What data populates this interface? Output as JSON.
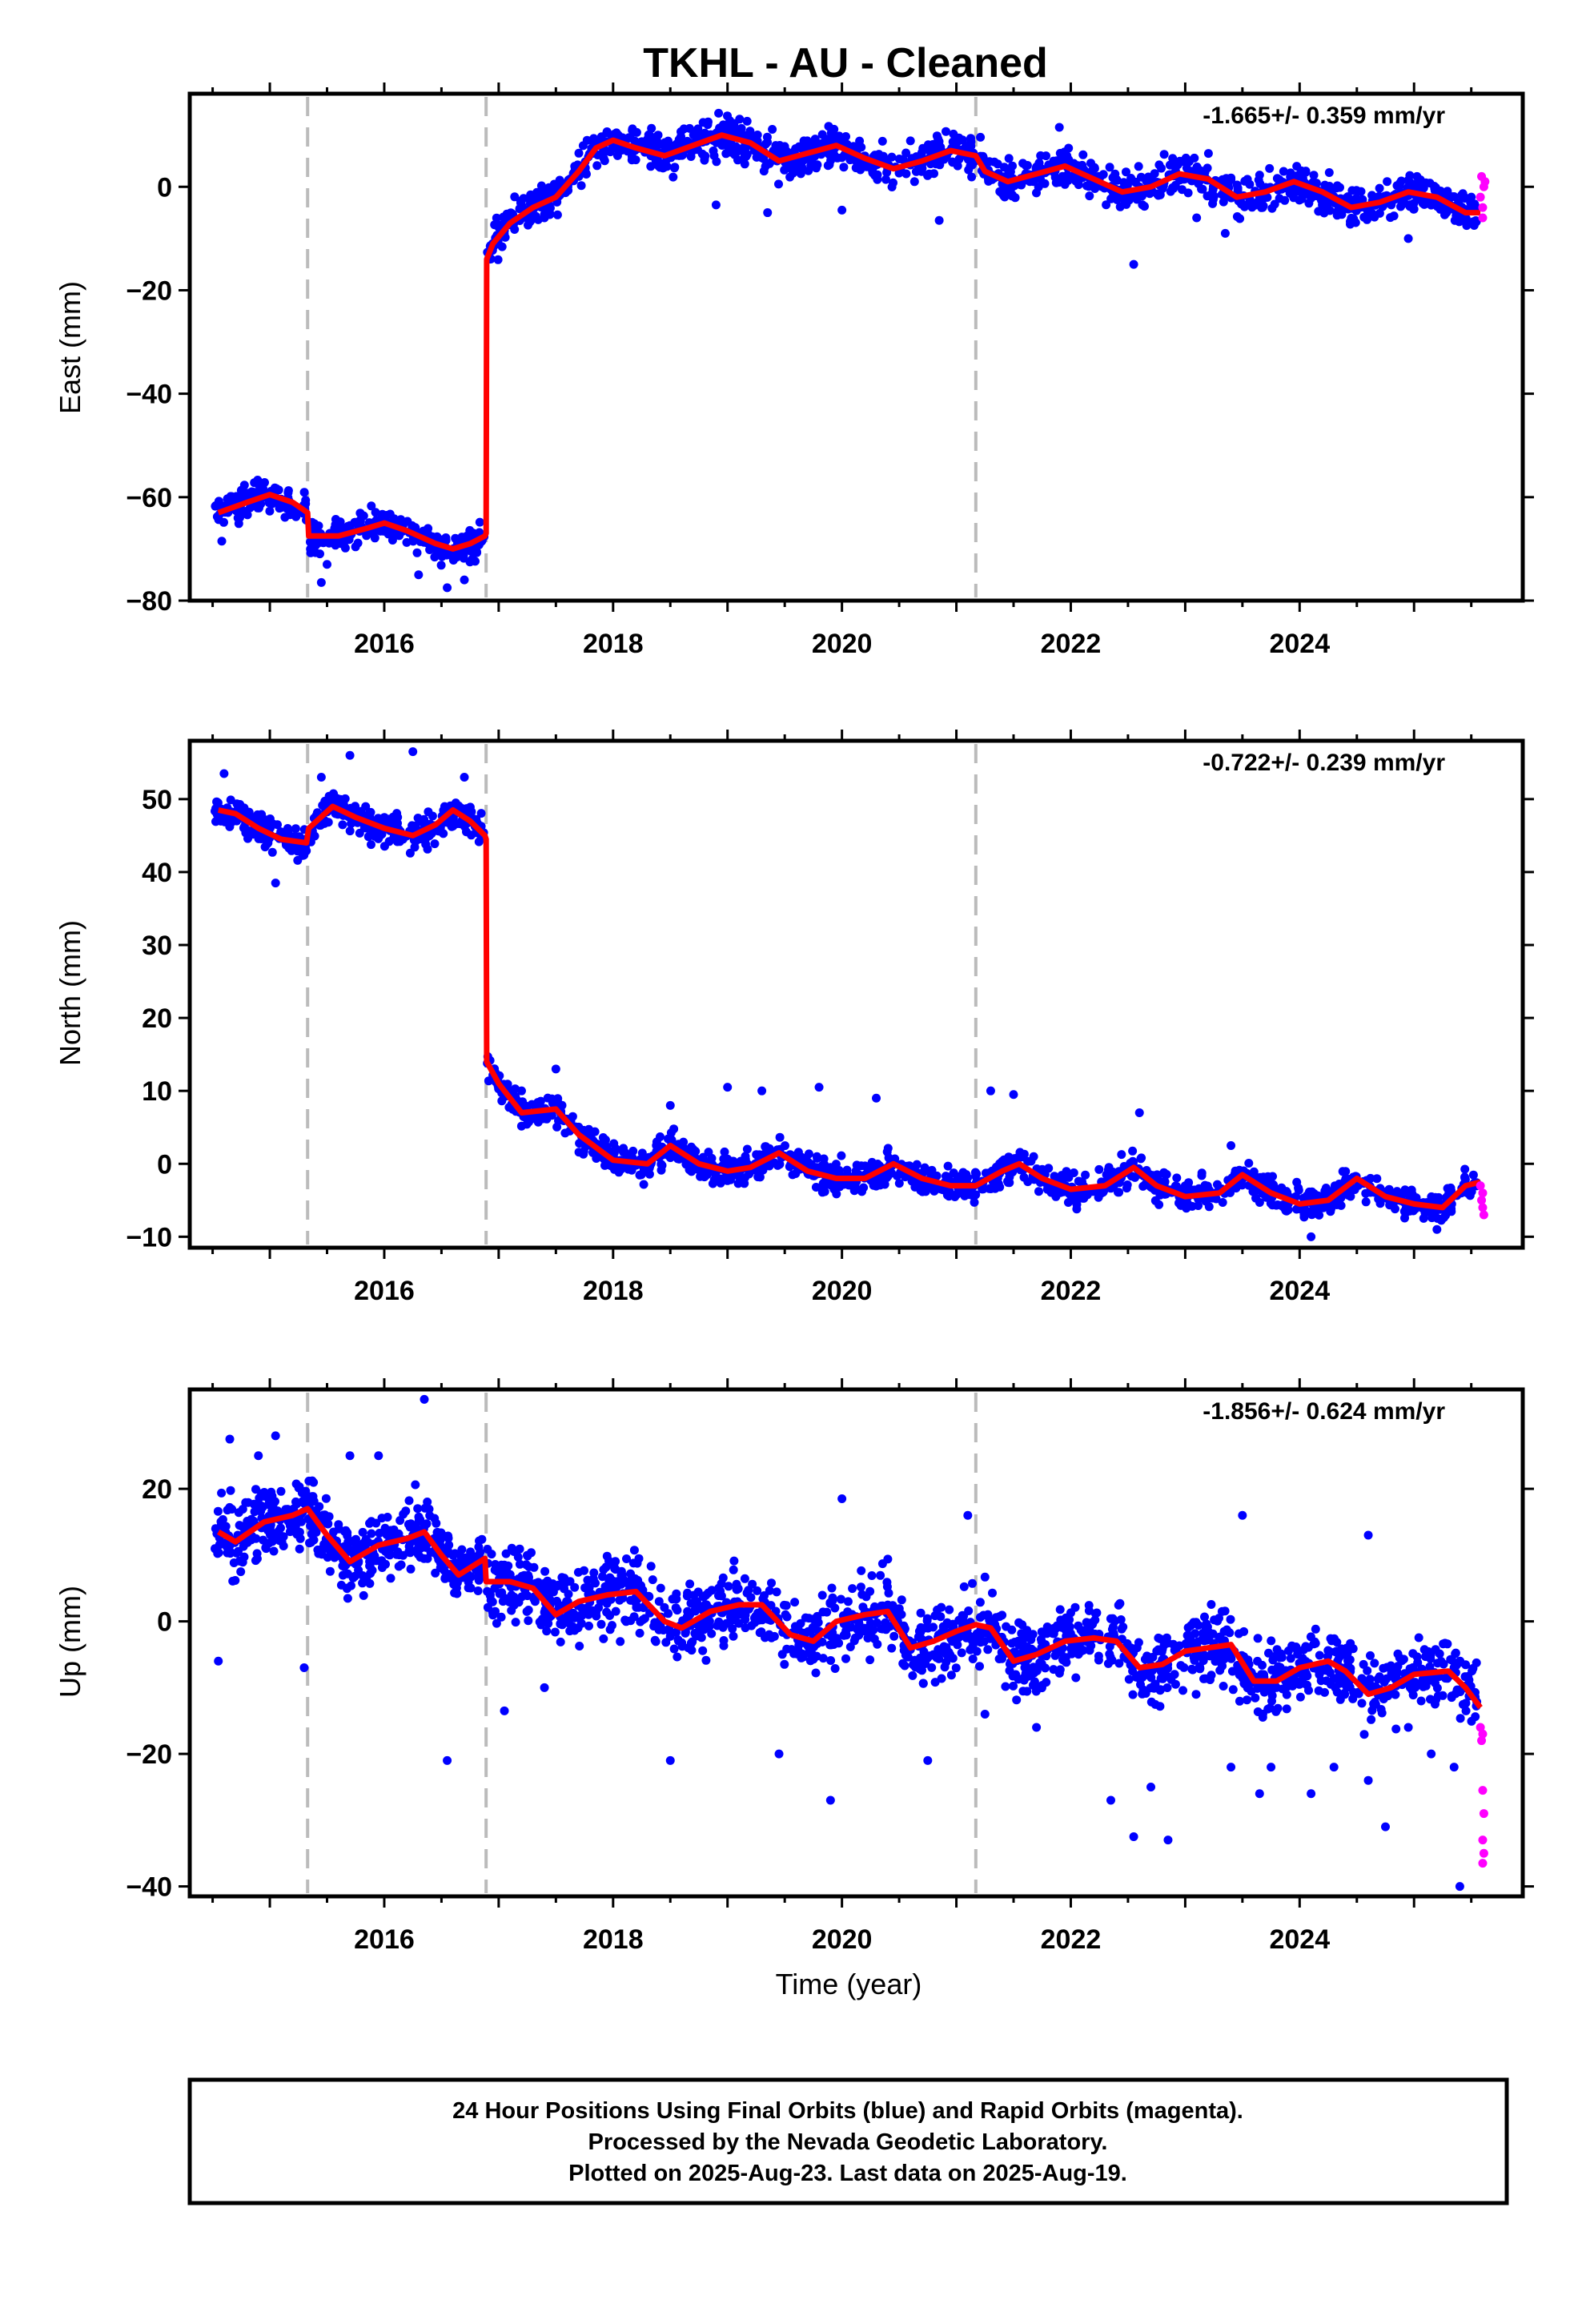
{
  "title": "TKHL  - AU - Cleaned",
  "colors": {
    "final": "#0000ff",
    "rapid": "#ff00ff",
    "model": "#ff0000",
    "offset_line": "#bbbbbb"
  },
  "chart_data": [
    {
      "type": "scatter",
      "component": "East",
      "ylabel": "East (mm)",
      "xlabel": "",
      "rate_label": "-1.665+/- 0.359 mm/yr",
      "xlim": [
        2014.3,
        2025.95
      ],
      "ylim": [
        -80,
        18
      ],
      "yticks": [
        0,
        -20,
        -40,
        -60,
        -80
      ],
      "ytick_labels": [
        "0",
        "−20",
        "−40",
        "−60",
        "−80"
      ],
      "xticks": [
        2016,
        2018,
        2020,
        2022,
        2024
      ],
      "xtick_labels": [
        "2016",
        "2018",
        "2020",
        "2022",
        "2024"
      ],
      "offsets": [
        2015.33,
        2016.89,
        2021.17
      ],
      "model_points": [
        [
          2014.55,
          -63
        ],
        [
          2014.8,
          -61
        ],
        [
          2015.0,
          -59.5
        ],
        [
          2015.2,
          -61
        ],
        [
          2015.33,
          -63
        ],
        [
          2015.34,
          -67.5
        ],
        [
          2015.6,
          -67.5
        ],
        [
          2015.85,
          -66
        ],
        [
          2016.0,
          -65
        ],
        [
          2016.2,
          -66.5
        ],
        [
          2016.45,
          -69
        ],
        [
          2016.6,
          -70
        ],
        [
          2016.75,
          -69
        ],
        [
          2016.88,
          -67.5
        ],
        [
          2016.89,
          -67
        ],
        [
          2016.895,
          -14
        ],
        [
          2016.95,
          -11
        ],
        [
          2017.1,
          -7
        ],
        [
          2017.3,
          -4
        ],
        [
          2017.5,
          -2
        ],
        [
          2017.7,
          3
        ],
        [
          2017.85,
          7.5
        ],
        [
          2018.0,
          9
        ],
        [
          2018.2,
          7.5
        ],
        [
          2018.45,
          6
        ],
        [
          2018.7,
          8
        ],
        [
          2018.95,
          10
        ],
        [
          2019.2,
          8.5
        ],
        [
          2019.45,
          5
        ],
        [
          2019.7,
          6.5
        ],
        [
          2019.95,
          8
        ],
        [
          2020.2,
          5.5
        ],
        [
          2020.45,
          3.5
        ],
        [
          2020.7,
          5
        ],
        [
          2020.95,
          7
        ],
        [
          2021.17,
          6
        ],
        [
          2021.25,
          3
        ],
        [
          2021.45,
          1
        ],
        [
          2021.7,
          2.5
        ],
        [
          2021.95,
          4
        ],
        [
          2022.2,
          1.5
        ],
        [
          2022.45,
          -1
        ],
        [
          2022.7,
          0
        ],
        [
          2022.95,
          2.5
        ],
        [
          2023.2,
          1.5
        ],
        [
          2023.45,
          -2
        ],
        [
          2023.7,
          -1
        ],
        [
          2023.95,
          1
        ],
        [
          2024.2,
          -1
        ],
        [
          2024.45,
          -4
        ],
        [
          2024.7,
          -3
        ],
        [
          2024.95,
          -1
        ],
        [
          2025.2,
          -2
        ],
        [
          2025.45,
          -5
        ],
        [
          2025.58,
          -5
        ]
      ],
      "cloud_segments": [
        {
          "x0": 2014.52,
          "x1": 2015.32,
          "spread": 2.2,
          "n": 120
        },
        {
          "x0": 2015.35,
          "x1": 2016.88,
          "spread": 2.2,
          "n": 230
        },
        {
          "x0": 2016.9,
          "x1": 2025.55,
          "spread": 2.6,
          "n": 1300
        }
      ],
      "outliers": [
        [
          2014.58,
          -68.5
        ],
        [
          2015.45,
          -76.5
        ],
        [
          2015.5,
          -73
        ],
        [
          2016.3,
          -75
        ],
        [
          2016.55,
          -77.5
        ],
        [
          2016.7,
          -76
        ],
        [
          2017.4,
          -6
        ],
        [
          2018.9,
          -3.5
        ],
        [
          2019.35,
          -5
        ],
        [
          2020.0,
          -4.5
        ],
        [
          2020.85,
          -6.5
        ],
        [
          2021.9,
          11.5
        ],
        [
          2022.55,
          -15
        ],
        [
          2023.1,
          -6
        ],
        [
          2023.35,
          -9
        ],
        [
          2024.95,
          -10
        ]
      ],
      "rapid_points": [
        [
          2025.58,
          -2
        ],
        [
          2025.6,
          -4
        ],
        [
          2025.59,
          2
        ],
        [
          2025.61,
          0
        ],
        [
          2025.6,
          -6
        ],
        [
          2025.62,
          1
        ]
      ]
    },
    {
      "type": "scatter",
      "component": "North",
      "ylabel": "North (mm)",
      "xlabel": "",
      "rate_label": "-0.722+/- 0.239 mm/yr",
      "xlim": [
        2014.3,
        2025.95
      ],
      "ylim": [
        -11.5,
        58
      ],
      "yticks": [
        50,
        40,
        30,
        20,
        10,
        0,
        -10
      ],
      "ytick_labels": [
        "50",
        "40",
        "30",
        "20",
        "10",
        "0",
        "−10"
      ],
      "xticks": [
        2016,
        2018,
        2020,
        2022,
        2024
      ],
      "xtick_labels": [
        "2016",
        "2018",
        "2020",
        "2022",
        "2024"
      ],
      "offsets": [
        2015.33,
        2016.89,
        2021.17
      ],
      "model_points": [
        [
          2014.55,
          48.5
        ],
        [
          2014.7,
          48
        ],
        [
          2014.9,
          46
        ],
        [
          2015.1,
          44.5
        ],
        [
          2015.32,
          44
        ],
        [
          2015.34,
          46
        ],
        [
          2015.55,
          49
        ],
        [
          2015.75,
          47.5
        ],
        [
          2016.0,
          46
        ],
        [
          2016.25,
          45
        ],
        [
          2016.45,
          46.5
        ],
        [
          2016.6,
          48.5
        ],
        [
          2016.75,
          47
        ],
        [
          2016.88,
          45
        ],
        [
          2016.89,
          44.5
        ],
        [
          2016.895,
          14
        ],
        [
          2017.0,
          11
        ],
        [
          2017.2,
          7
        ],
        [
          2017.5,
          7.5
        ],
        [
          2017.7,
          4
        ],
        [
          2018.0,
          0.5
        ],
        [
          2018.3,
          0
        ],
        [
          2018.5,
          2.5
        ],
        [
          2018.75,
          0
        ],
        [
          2019.0,
          -1
        ],
        [
          2019.2,
          -0.5
        ],
        [
          2019.45,
          1.5
        ],
        [
          2019.7,
          -1
        ],
        [
          2019.95,
          -2
        ],
        [
          2020.2,
          -2
        ],
        [
          2020.45,
          0
        ],
        [
          2020.7,
          -2
        ],
        [
          2020.95,
          -3
        ],
        [
          2021.17,
          -3
        ],
        [
          2021.4,
          -1
        ],
        [
          2021.55,
          0
        ],
        [
          2021.75,
          -2
        ],
        [
          2022.0,
          -3.5
        ],
        [
          2022.3,
          -3
        ],
        [
          2022.55,
          -0.5
        ],
        [
          2022.75,
          -3
        ],
        [
          2023.0,
          -4.5
        ],
        [
          2023.3,
          -4
        ],
        [
          2023.5,
          -1.5
        ],
        [
          2023.75,
          -4
        ],
        [
          2024.0,
          -5.5
        ],
        [
          2024.25,
          -5
        ],
        [
          2024.5,
          -2
        ],
        [
          2024.75,
          -4.5
        ],
        [
          2025.0,
          -5.5
        ],
        [
          2025.25,
          -6
        ],
        [
          2025.45,
          -3
        ],
        [
          2025.58,
          -2.5
        ]
      ],
      "cloud_segments": [
        {
          "x0": 2014.52,
          "x1": 2015.32,
          "spread": 1.5,
          "n": 150
        },
        {
          "x0": 2015.35,
          "x1": 2016.88,
          "spread": 1.6,
          "n": 250
        },
        {
          "x0": 2016.9,
          "x1": 2025.55,
          "spread": 1.5,
          "n": 1300
        }
      ],
      "outliers": [
        [
          2014.6,
          53.5
        ],
        [
          2015.05,
          38.5
        ],
        [
          2015.45,
          53
        ],
        [
          2015.7,
          56
        ],
        [
          2016.25,
          56.5
        ],
        [
          2016.7,
          53
        ],
        [
          2017.5,
          13
        ],
        [
          2017.2,
          10
        ],
        [
          2018.5,
          8
        ],
        [
          2019.0,
          10.5
        ],
        [
          2019.3,
          10
        ],
        [
          2019.8,
          10.5
        ],
        [
          2020.3,
          9
        ],
        [
          2021.3,
          10
        ],
        [
          2021.5,
          9.5
        ],
        [
          2022.6,
          7
        ],
        [
          2023.4,
          2.5
        ],
        [
          2024.1,
          -10
        ],
        [
          2025.2,
          -9
        ]
      ],
      "rapid_points": [
        [
          2025.58,
          -3
        ],
        [
          2025.59,
          -5
        ],
        [
          2025.6,
          -6
        ],
        [
          2025.61,
          -7
        ],
        [
          2025.6,
          -4
        ]
      ]
    },
    {
      "type": "scatter",
      "component": "Up",
      "ylabel": "Up (mm)",
      "xlabel": "Time (year)",
      "rate_label": "-1.856+/- 0.624 mm/yr",
      "xlim": [
        2014.3,
        2025.95
      ],
      "ylim": [
        -41.5,
        35
      ],
      "yticks": [
        20,
        0,
        -20,
        -40
      ],
      "ytick_labels": [
        "20",
        "0",
        "−20",
        "−40"
      ],
      "xticks": [
        2016,
        2018,
        2020,
        2022,
        2024
      ],
      "xtick_labels": [
        "2016",
        "2018",
        "2020",
        "2022",
        "2024"
      ],
      "offsets": [
        2015.33,
        2016.89,
        2021.17
      ],
      "model_points": [
        [
          2014.55,
          13.5
        ],
        [
          2014.7,
          12
        ],
        [
          2014.95,
          15
        ],
        [
          2015.2,
          16
        ],
        [
          2015.33,
          17
        ],
        [
          2015.5,
          13
        ],
        [
          2015.7,
          9
        ],
        [
          2015.95,
          11.5
        ],
        [
          2016.2,
          12.5
        ],
        [
          2016.35,
          13.5
        ],
        [
          2016.5,
          10
        ],
        [
          2016.65,
          7
        ],
        [
          2016.88,
          9.5
        ],
        [
          2016.89,
          6
        ],
        [
          2017.1,
          6
        ],
        [
          2017.3,
          5
        ],
        [
          2017.5,
          1
        ],
        [
          2017.7,
          3
        ],
        [
          2017.95,
          4
        ],
        [
          2018.2,
          4.5
        ],
        [
          2018.45,
          0
        ],
        [
          2018.6,
          -1
        ],
        [
          2018.85,
          1.5
        ],
        [
          2019.1,
          2.5
        ],
        [
          2019.3,
          2.5
        ],
        [
          2019.55,
          -2
        ],
        [
          2019.75,
          -3
        ],
        [
          2019.95,
          0
        ],
        [
          2020.2,
          1
        ],
        [
          2020.4,
          1.5
        ],
        [
          2020.6,
          -4
        ],
        [
          2020.8,
          -3
        ],
        [
          2021.0,
          -1.5
        ],
        [
          2021.17,
          -0.5
        ],
        [
          2021.3,
          -1
        ],
        [
          2021.5,
          -6
        ],
        [
          2021.7,
          -5
        ],
        [
          2021.95,
          -3
        ],
        [
          2022.2,
          -2.5
        ],
        [
          2022.4,
          -3
        ],
        [
          2022.6,
          -7
        ],
        [
          2022.8,
          -6.5
        ],
        [
          2023.0,
          -4.5
        ],
        [
          2023.2,
          -4
        ],
        [
          2023.4,
          -3.5
        ],
        [
          2023.6,
          -9
        ],
        [
          2023.8,
          -9
        ],
        [
          2024.0,
          -7
        ],
        [
          2024.25,
          -6
        ],
        [
          2024.4,
          -7.5
        ],
        [
          2024.6,
          -11
        ],
        [
          2024.8,
          -10
        ],
        [
          2025.0,
          -8
        ],
        [
          2025.3,
          -7.5
        ],
        [
          2025.45,
          -10
        ],
        [
          2025.58,
          -13
        ]
      ],
      "cloud_segments": [
        {
          "x0": 2014.52,
          "x1": 2016.88,
          "spread": 3.6,
          "n": 480
        },
        {
          "x0": 2016.9,
          "x1": 2025.55,
          "spread": 4.0,
          "n": 1500
        }
      ],
      "outliers": [
        [
          2014.55,
          -6
        ],
        [
          2014.65,
          27.5
        ],
        [
          2014.9,
          25
        ],
        [
          2015.05,
          28
        ],
        [
          2015.3,
          -7
        ],
        [
          2015.7,
          25
        ],
        [
          2015.95,
          25
        ],
        [
          2016.35,
          33.5
        ],
        [
          2016.55,
          -21
        ],
        [
          2017.05,
          -13.5
        ],
        [
          2017.4,
          -10
        ],
        [
          2018.5,
          -21
        ],
        [
          2019.45,
          -20
        ],
        [
          2019.9,
          -27
        ],
        [
          2020.0,
          18.5
        ],
        [
          2020.75,
          -21
        ],
        [
          2021.1,
          16
        ],
        [
          2021.25,
          -14
        ],
        [
          2021.7,
          -16
        ],
        [
          2022.35,
          -27
        ],
        [
          2022.55,
          -32.5
        ],
        [
          2022.7,
          -25
        ],
        [
          2022.85,
          -33
        ],
        [
          2023.4,
          -22
        ],
        [
          2023.65,
          -26
        ],
        [
          2023.75,
          -22
        ],
        [
          2024.1,
          -26
        ],
        [
          2024.3,
          -22
        ],
        [
          2024.6,
          -24
        ],
        [
          2024.75,
          -31
        ],
        [
          2024.95,
          -16
        ],
        [
          2025.15,
          -20
        ],
        [
          2025.4,
          -40
        ],
        [
          2025.35,
          -22
        ],
        [
          2023.5,
          16
        ],
        [
          2024.6,
          13
        ]
      ],
      "rapid_points": [
        [
          2025.58,
          -16
        ],
        [
          2025.6,
          -17
        ],
        [
          2025.6,
          -25.5
        ],
        [
          2025.61,
          -29
        ],
        [
          2025.6,
          -33
        ],
        [
          2025.61,
          -35
        ],
        [
          2025.6,
          -36.5
        ],
        [
          2025.59,
          -18
        ]
      ]
    }
  ],
  "footer": {
    "line1": "24 Hour Positions Using Final Orbits (blue) and Rapid Orbits (magenta).",
    "line2": "Processed by the Nevada Geodetic Laboratory.",
    "line3": "Plotted on 2025-Aug-23. Last data on 2025-Aug-19."
  }
}
